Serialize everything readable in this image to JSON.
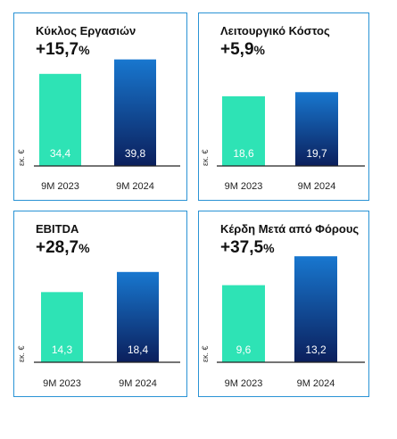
{
  "colors": {
    "border": "#2a93d5",
    "bar_2023": "#2ee3b5",
    "bar_2024_top": "#1877cf",
    "bar_2024_bottom": "#0b1f5c",
    "axis": "#222222",
    "label_2023": "#ffffff",
    "label_2024": "#ffffff"
  },
  "panels": [
    {
      "title": "Κύκλος Εργασιών",
      "change_num": "+15,7",
      "change_pct": "%",
      "unit": "εκ. €"
    },
    {
      "title": "Λειτουργικό Κόστος",
      "change_num": "+5,9",
      "change_pct": "%",
      "unit": "εκ. €"
    },
    {
      "title": "EBITDA",
      "change_num": "+28,7",
      "change_pct": "%",
      "unit": "εκ. €"
    },
    {
      "title": "Κέρδη Μετά από Φόρους",
      "change_num": "+37,5",
      "change_pct": "%",
      "unit": "εκ. €"
    }
  ],
  "chart_data": [
    {
      "type": "bar",
      "title": "Κύκλος Εργασιών",
      "ylabel": "εκ. €",
      "categories": [
        "9M 2023",
        "9M 2024"
      ],
      "values": [
        34.4,
        39.8
      ],
      "value_labels": [
        "34,4",
        "39,8"
      ]
    },
    {
      "type": "bar",
      "title": "Λειτουργικό Κόστος",
      "ylabel": "εκ. €",
      "categories": [
        "9M 2023",
        "9M 2024"
      ],
      "values": [
        18.6,
        19.7
      ],
      "value_labels": [
        "18,6",
        "19,7"
      ]
    },
    {
      "type": "bar",
      "title": "EBITDA",
      "ylabel": "εκ. €",
      "categories": [
        "9M 2023",
        "9M 2024"
      ],
      "values": [
        14.3,
        18.4
      ],
      "value_labels": [
        "14,3",
        "18,4"
      ]
    },
    {
      "type": "bar",
      "title": "Κέρδη Μετά από Φόρους",
      "ylabel": "εκ. €",
      "categories": [
        "9M 2023",
        "9M 2024"
      ],
      "values": [
        9.6,
        13.2
      ],
      "value_labels": [
        "9,6",
        "13,2"
      ]
    }
  ]
}
